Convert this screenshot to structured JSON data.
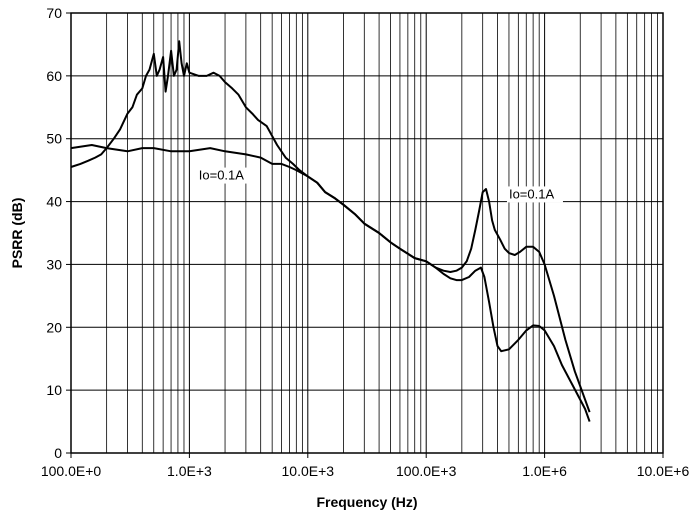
{
  "chart_data": {
    "type": "line",
    "x_scale": "log",
    "xlabel": "Frequency (Hz)",
    "ylabel": "PSRR (dB)",
    "xlim": [
      100,
      10000000
    ],
    "ylim": [
      0,
      70
    ],
    "x_ticks": [
      {
        "value": 100,
        "label": "100.0E+0"
      },
      {
        "value": 1000,
        "label": "1.0E+3"
      },
      {
        "value": 10000,
        "label": "10.0E+3"
      },
      {
        "value": 100000,
        "label": "100.0E+3"
      },
      {
        "value": 1000000,
        "label": "1.0E+6"
      },
      {
        "value": 10000000,
        "label": "10.0E+6"
      }
    ],
    "y_ticks": [
      0,
      10,
      20,
      30,
      40,
      50,
      60,
      70
    ],
    "grid": true,
    "legend": "none",
    "line_color": "#000000",
    "series": [
      {
        "values": [
          [
            100,
            45.5
          ],
          [
            120,
            46
          ],
          [
            140,
            46.5
          ],
          [
            160,
            47
          ],
          [
            180,
            47.5
          ],
          [
            200,
            48.5
          ],
          [
            230,
            50
          ],
          [
            260,
            51.5
          ],
          [
            300,
            54
          ],
          [
            330,
            55
          ],
          [
            360,
            57
          ],
          [
            400,
            58
          ],
          [
            430,
            60
          ],
          [
            460,
            61
          ],
          [
            500,
            63.5
          ],
          [
            530,
            60
          ],
          [
            560,
            61
          ],
          [
            600,
            63
          ],
          [
            630,
            57.5
          ],
          [
            660,
            60
          ],
          [
            700,
            64
          ],
          [
            740,
            60
          ],
          [
            780,
            61
          ],
          [
            820,
            65.5
          ],
          [
            860,
            62
          ],
          [
            900,
            60
          ],
          [
            950,
            62
          ],
          [
            1000,
            60.5
          ],
          [
            1200,
            60
          ],
          [
            1400,
            60
          ],
          [
            1600,
            60.5
          ],
          [
            1800,
            60
          ],
          [
            2000,
            59
          ],
          [
            2300,
            58
          ],
          [
            2600,
            57
          ],
          [
            3000,
            55
          ],
          [
            3400,
            54
          ],
          [
            3800,
            53
          ],
          [
            4500,
            52
          ],
          [
            5500,
            49
          ],
          [
            6500,
            47
          ],
          [
            7500,
            46
          ],
          [
            8500,
            45
          ],
          [
            10000,
            44
          ],
          [
            12000,
            43
          ],
          [
            14000,
            41.5
          ],
          [
            17000,
            40.5
          ],
          [
            20000,
            39.5
          ],
          [
            25000,
            38
          ],
          [
            30000,
            36.5
          ],
          [
            40000,
            35
          ],
          [
            50000,
            33.5
          ],
          [
            60000,
            32.5
          ],
          [
            80000,
            31
          ],
          [
            100000,
            30.5
          ],
          [
            120000,
            29.5
          ],
          [
            140000,
            28.5
          ],
          [
            160000,
            27.8
          ],
          [
            180000,
            27.5
          ],
          [
            200000,
            27.5
          ],
          [
            230000,
            28
          ],
          [
            260000,
            29
          ],
          [
            290000,
            29.5
          ],
          [
            310000,
            28
          ],
          [
            340000,
            24
          ],
          [
            370000,
            20
          ],
          [
            400000,
            17
          ],
          [
            430000,
            16.2
          ],
          [
            500000,
            16.5
          ],
          [
            600000,
            18
          ],
          [
            700000,
            19.5
          ],
          [
            800000,
            20.3
          ],
          [
            900000,
            20.2
          ],
          [
            1000000,
            19.5
          ],
          [
            1200000,
            17
          ],
          [
            1400000,
            14
          ],
          [
            1700000,
            11
          ],
          [
            2000000,
            8.5
          ],
          [
            2200000,
            7
          ],
          [
            2400000,
            5
          ]
        ]
      },
      {
        "values": [
          [
            100,
            48.5
          ],
          [
            150,
            49
          ],
          [
            200,
            48.5
          ],
          [
            300,
            48
          ],
          [
            400,
            48.5
          ],
          [
            500,
            48.5
          ],
          [
            700,
            48
          ],
          [
            1000,
            48
          ],
          [
            1500,
            48.5
          ],
          [
            2000,
            48
          ],
          [
            3000,
            47.5
          ],
          [
            4000,
            47
          ],
          [
            5000,
            46
          ],
          [
            6000,
            46
          ],
          [
            7000,
            45.5
          ],
          [
            8000,
            45
          ],
          [
            10000,
            44
          ],
          [
            12000,
            43
          ],
          [
            14000,
            41.5
          ],
          [
            17000,
            40.5
          ],
          [
            20000,
            39.5
          ],
          [
            25000,
            38
          ],
          [
            30000,
            36.5
          ],
          [
            40000,
            35
          ],
          [
            50000,
            33.5
          ],
          [
            60000,
            32.5
          ],
          [
            80000,
            31
          ],
          [
            100000,
            30.5
          ],
          [
            120000,
            29.5
          ],
          [
            140000,
            29
          ],
          [
            160000,
            28.8
          ],
          [
            180000,
            29
          ],
          [
            200000,
            29.5
          ],
          [
            220000,
            30.5
          ],
          [
            240000,
            32.5
          ],
          [
            260000,
            35.5
          ],
          [
            280000,
            38.5
          ],
          [
            300000,
            41.5
          ],
          [
            320000,
            42
          ],
          [
            340000,
            40
          ],
          [
            360000,
            37
          ],
          [
            380000,
            35.5
          ],
          [
            420000,
            34
          ],
          [
            460000,
            32.5
          ],
          [
            500000,
            31.8
          ],
          [
            560000,
            31.5
          ],
          [
            620000,
            32
          ],
          [
            700000,
            32.8
          ],
          [
            800000,
            32.8
          ],
          [
            900000,
            32
          ],
          [
            1000000,
            30
          ],
          [
            1200000,
            25
          ],
          [
            1500000,
            18
          ],
          [
            1800000,
            13
          ],
          [
            2100000,
            9.5
          ],
          [
            2400000,
            6.5
          ]
        ]
      }
    ],
    "annotations": [
      {
        "text": "Io=0.1A",
        "x": 1200,
        "y": 43.5
      },
      {
        "text": "Io=0.1A",
        "x": 500000,
        "y": 40.5
      }
    ]
  }
}
